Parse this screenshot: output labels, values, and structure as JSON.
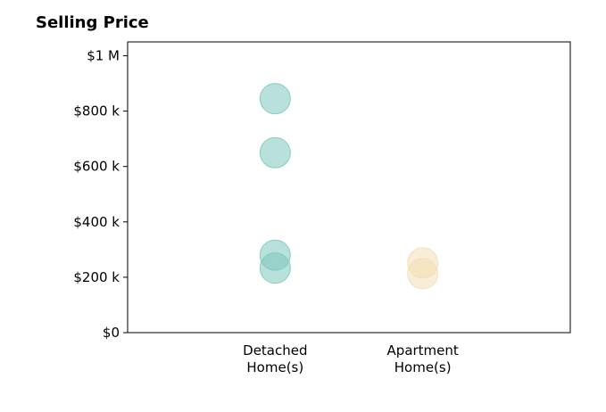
{
  "chart_data": {
    "type": "scatter",
    "title": "Selling Price",
    "xlabel": "",
    "ylabel": "",
    "categories": [
      [
        "Detached",
        "Home(s)"
      ],
      [
        "Apartment",
        "Home(s)"
      ]
    ],
    "y_ticks": [
      {
        "value": 0,
        "label": "$0"
      },
      {
        "value": 200000,
        "label": "$200 k"
      },
      {
        "value": 400000,
        "label": "$400 k"
      },
      {
        "value": 600000,
        "label": "$600 k"
      },
      {
        "value": 800000,
        "label": "$800 k"
      },
      {
        "value": 1000000,
        "label": "$1 M"
      }
    ],
    "ylim": [
      0,
      1050000
    ],
    "xlim": [
      -1,
      2
    ],
    "grid": false,
    "series": [
      {
        "category_index": 0,
        "color": "#7ec8bd",
        "values": [
          845000,
          650000,
          280000,
          233000
        ]
      },
      {
        "category_index": 1,
        "color": "#f3dfb5",
        "values": [
          252000,
          213000
        ]
      }
    ]
  }
}
